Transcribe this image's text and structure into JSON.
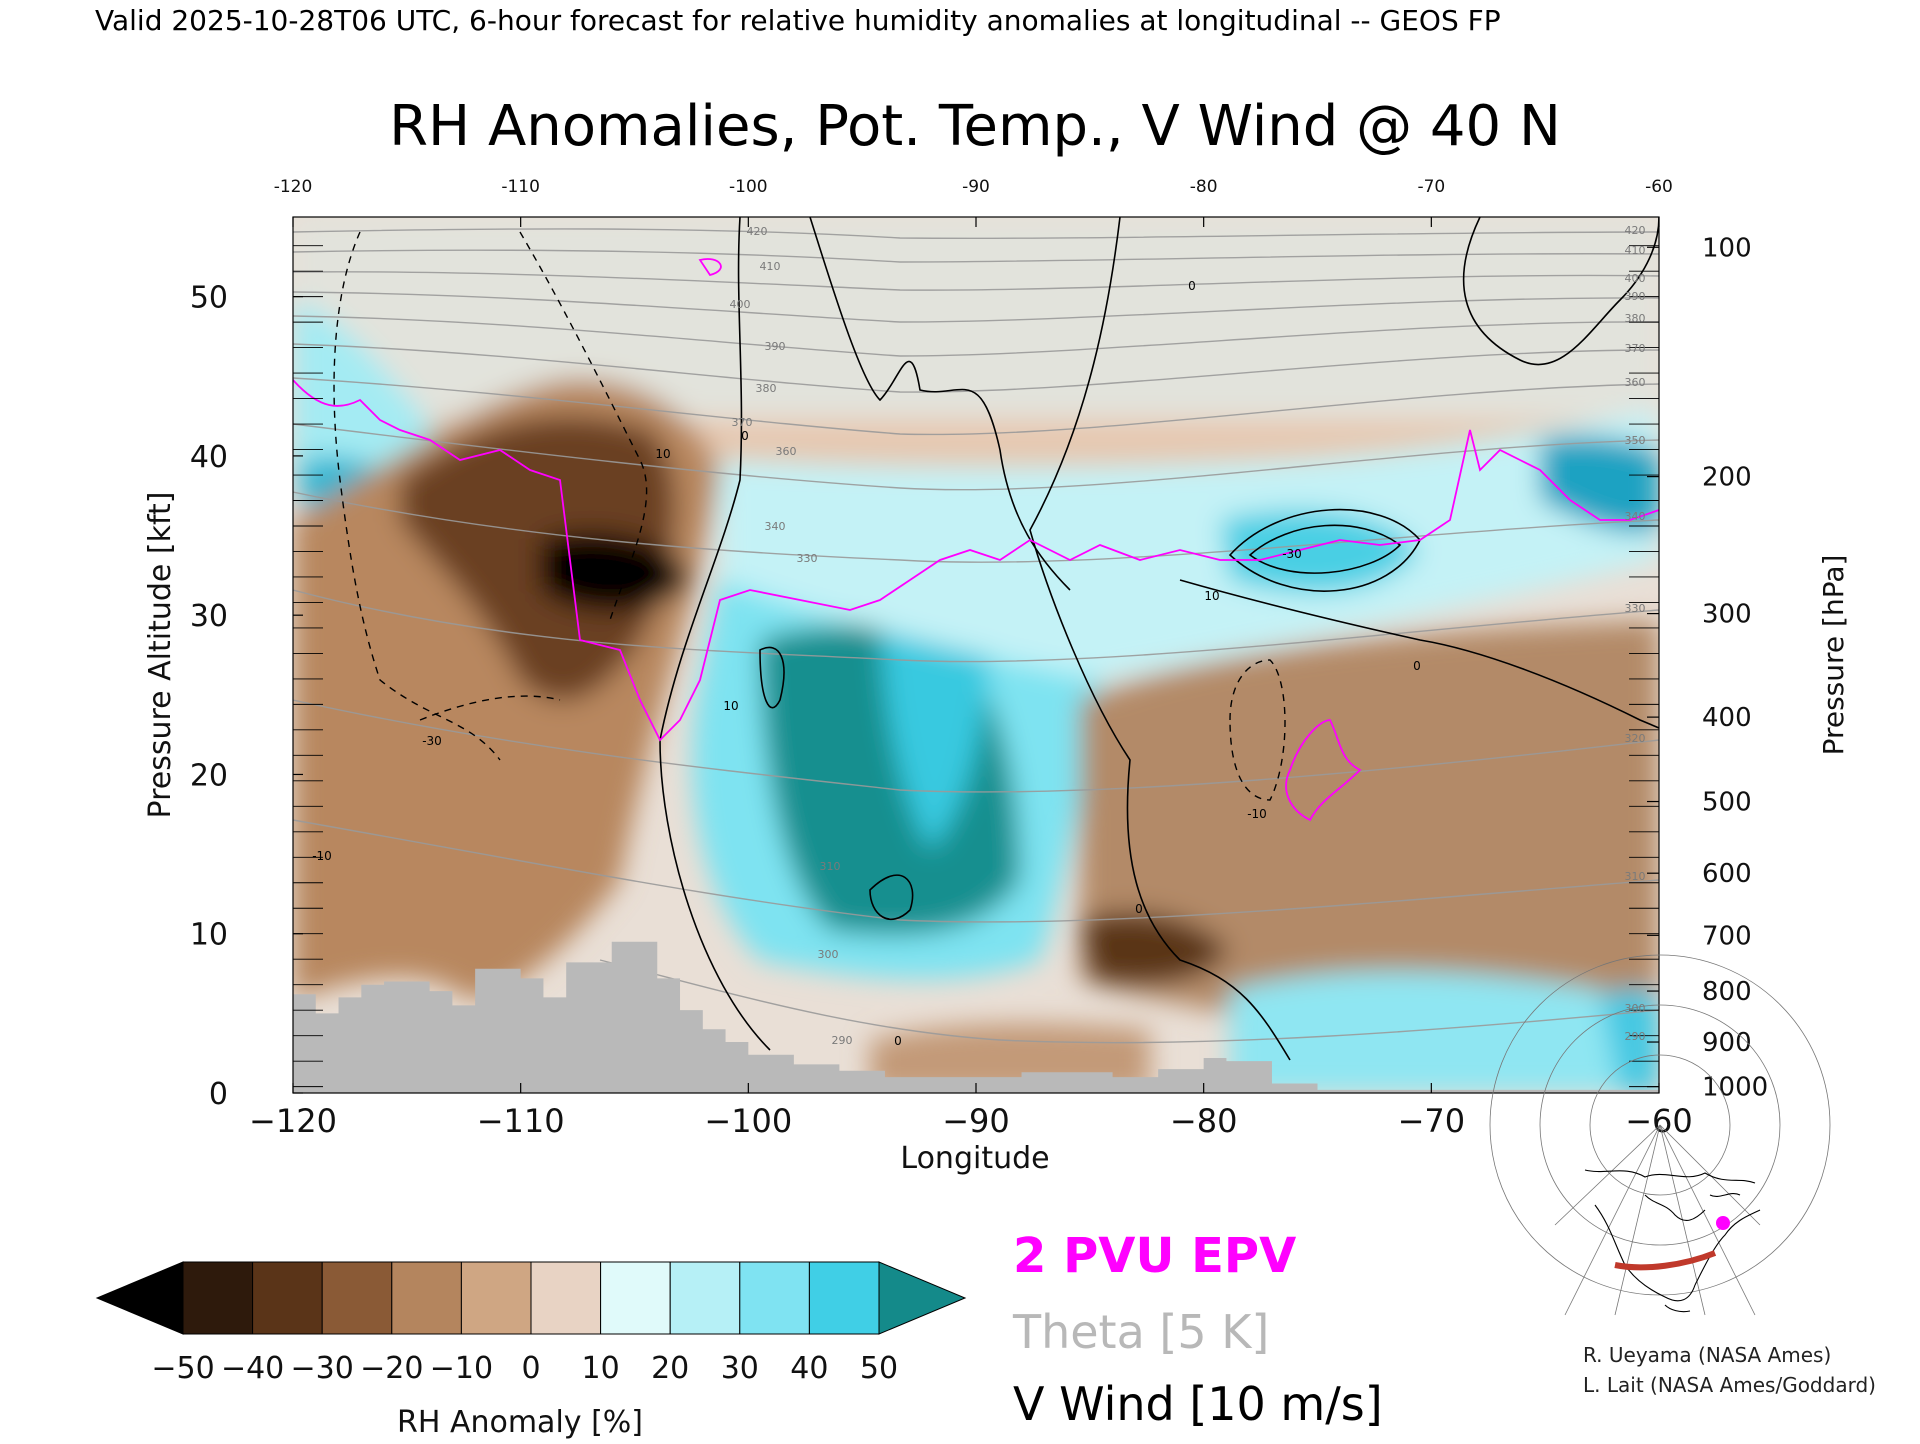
{
  "header": {
    "valid_line": "Valid 2025-10-28T06 UTC, 6-hour forecast for relative humidity anomalies at longitudinal -- GEOS FP"
  },
  "chart_data": {
    "type": "heatmap",
    "title": "RH Anomalies, Pot. Temp., V Wind @ 40 N",
    "xlabel": "Longitude",
    "ylabel": "Pressure Altitude [kft]",
    "ylabel_right": "Pressure [hPa]",
    "xlim": [
      -120,
      -60
    ],
    "ylim": [
      0,
      55
    ],
    "x_ticks_bottom": [
      "−120",
      "−110",
      "−100",
      "−90",
      "−80",
      "−70",
      "−60"
    ],
    "x_ticks_top": [
      "-120",
      "-110",
      "-100",
      "-90",
      "-80",
      "-70",
      "-60"
    ],
    "x_tick_values": [
      -120,
      -110,
      -100,
      -90,
      -80,
      -70,
      -60
    ],
    "y_ticks": [
      0,
      10,
      20,
      30,
      40,
      50
    ],
    "pressure_ticks": [
      {
        "hpa": "100",
        "kft": 53.1
      },
      {
        "hpa": "200",
        "kft": 38.7
      },
      {
        "hpa": "300",
        "kft": 30.1
      },
      {
        "hpa": "400",
        "kft": 23.6
      },
      {
        "hpa": "500",
        "kft": 18.3
      },
      {
        "hpa": "600",
        "kft": 13.8
      },
      {
        "hpa": "700",
        "kft": 9.9
      },
      {
        "hpa": "800",
        "kft": 6.4
      },
      {
        "hpa": "900",
        "kft": 3.2
      },
      {
        "hpa": "1000",
        "kft": 0.4
      }
    ],
    "grid": false,
    "colorbar": {
      "label": "RH Anomaly [%]",
      "tick_labels": [
        "−50",
        "−40",
        "−30",
        "−20",
        "−10",
        "0",
        "10",
        "20",
        "30",
        "40",
        "50"
      ],
      "tick_values": [
        -50,
        -40,
        -30,
        -20,
        -10,
        0,
        10,
        20,
        30,
        40,
        50
      ],
      "colors": [
        "#2e1a0c",
        "#5a3418",
        "#8a5a36",
        "#b4855e",
        "#cfa683",
        "#e8d3c4",
        "#e0fafa",
        "#b6f0f6",
        "#7fe3f2",
        "#40cfe6",
        "#12a8c8"
      ],
      "under_color": "#000000",
      "over_color": "#148a8a"
    },
    "legend": [
      {
        "text": "2 PVU EPV",
        "color": "#ff00ff"
      },
      {
        "text": "Theta [5 K]",
        "color": "#b8b8b8"
      },
      {
        "text": "V Wind [10 m/s]",
        "color": "#000000"
      }
    ],
    "theta_labels": [
      "420",
      "410",
      "400",
      "390",
      "380",
      "370",
      "360",
      "350",
      "340",
      "330",
      "320",
      "310",
      "300",
      "290"
    ],
    "theta_label_values": [
      420,
      410,
      400,
      390,
      380,
      370,
      360,
      350,
      340,
      330,
      320,
      310,
      300,
      290
    ],
    "vwind_labels": [
      "0",
      "10",
      "-10",
      "-30"
    ],
    "vwind_label_values": [
      0,
      10,
      -10,
      -30
    ],
    "terrain_kft": [
      {
        "lon": -120,
        "kft": 6.2
      },
      {
        "lon": -119,
        "kft": 5.0
      },
      {
        "lon": -118,
        "kft": 6.0
      },
      {
        "lon": -117,
        "kft": 6.8
      },
      {
        "lon": -116,
        "kft": 7.0
      },
      {
        "lon": -114,
        "kft": 6.4
      },
      {
        "lon": -113,
        "kft": 5.5
      },
      {
        "lon": -112,
        "kft": 7.8
      },
      {
        "lon": -110,
        "kft": 7.2
      },
      {
        "lon": -109,
        "kft": 6.0
      },
      {
        "lon": -108,
        "kft": 8.2
      },
      {
        "lon": -106,
        "kft": 9.5
      },
      {
        "lon": -104,
        "kft": 7.2
      },
      {
        "lon": -103,
        "kft": 5.2
      },
      {
        "lon": -102,
        "kft": 4.0
      },
      {
        "lon": -101,
        "kft": 3.2
      },
      {
        "lon": -100,
        "kft": 2.4
      },
      {
        "lon": -98,
        "kft": 1.8
      },
      {
        "lon": -96,
        "kft": 1.4
      },
      {
        "lon": -94,
        "kft": 1.0
      },
      {
        "lon": -90,
        "kft": 1.0
      },
      {
        "lon": -88,
        "kft": 1.3
      },
      {
        "lon": -84,
        "kft": 1.0
      },
      {
        "lon": -82,
        "kft": 1.5
      },
      {
        "lon": -80,
        "kft": 2.2
      },
      {
        "lon": -79,
        "kft": 2.0
      },
      {
        "lon": -77,
        "kft": 0.6
      },
      {
        "lon": -75,
        "kft": 0.2
      },
      {
        "lon": -60,
        "kft": 0.0
      }
    ]
  },
  "credits": {
    "line1": "R. Ueyama (NASA Ames)",
    "line2": "L. Lait (NASA Ames/Goddard)"
  },
  "inset_map": {
    "section_color": "#c0392b",
    "marker_color": "#ff00ff"
  }
}
